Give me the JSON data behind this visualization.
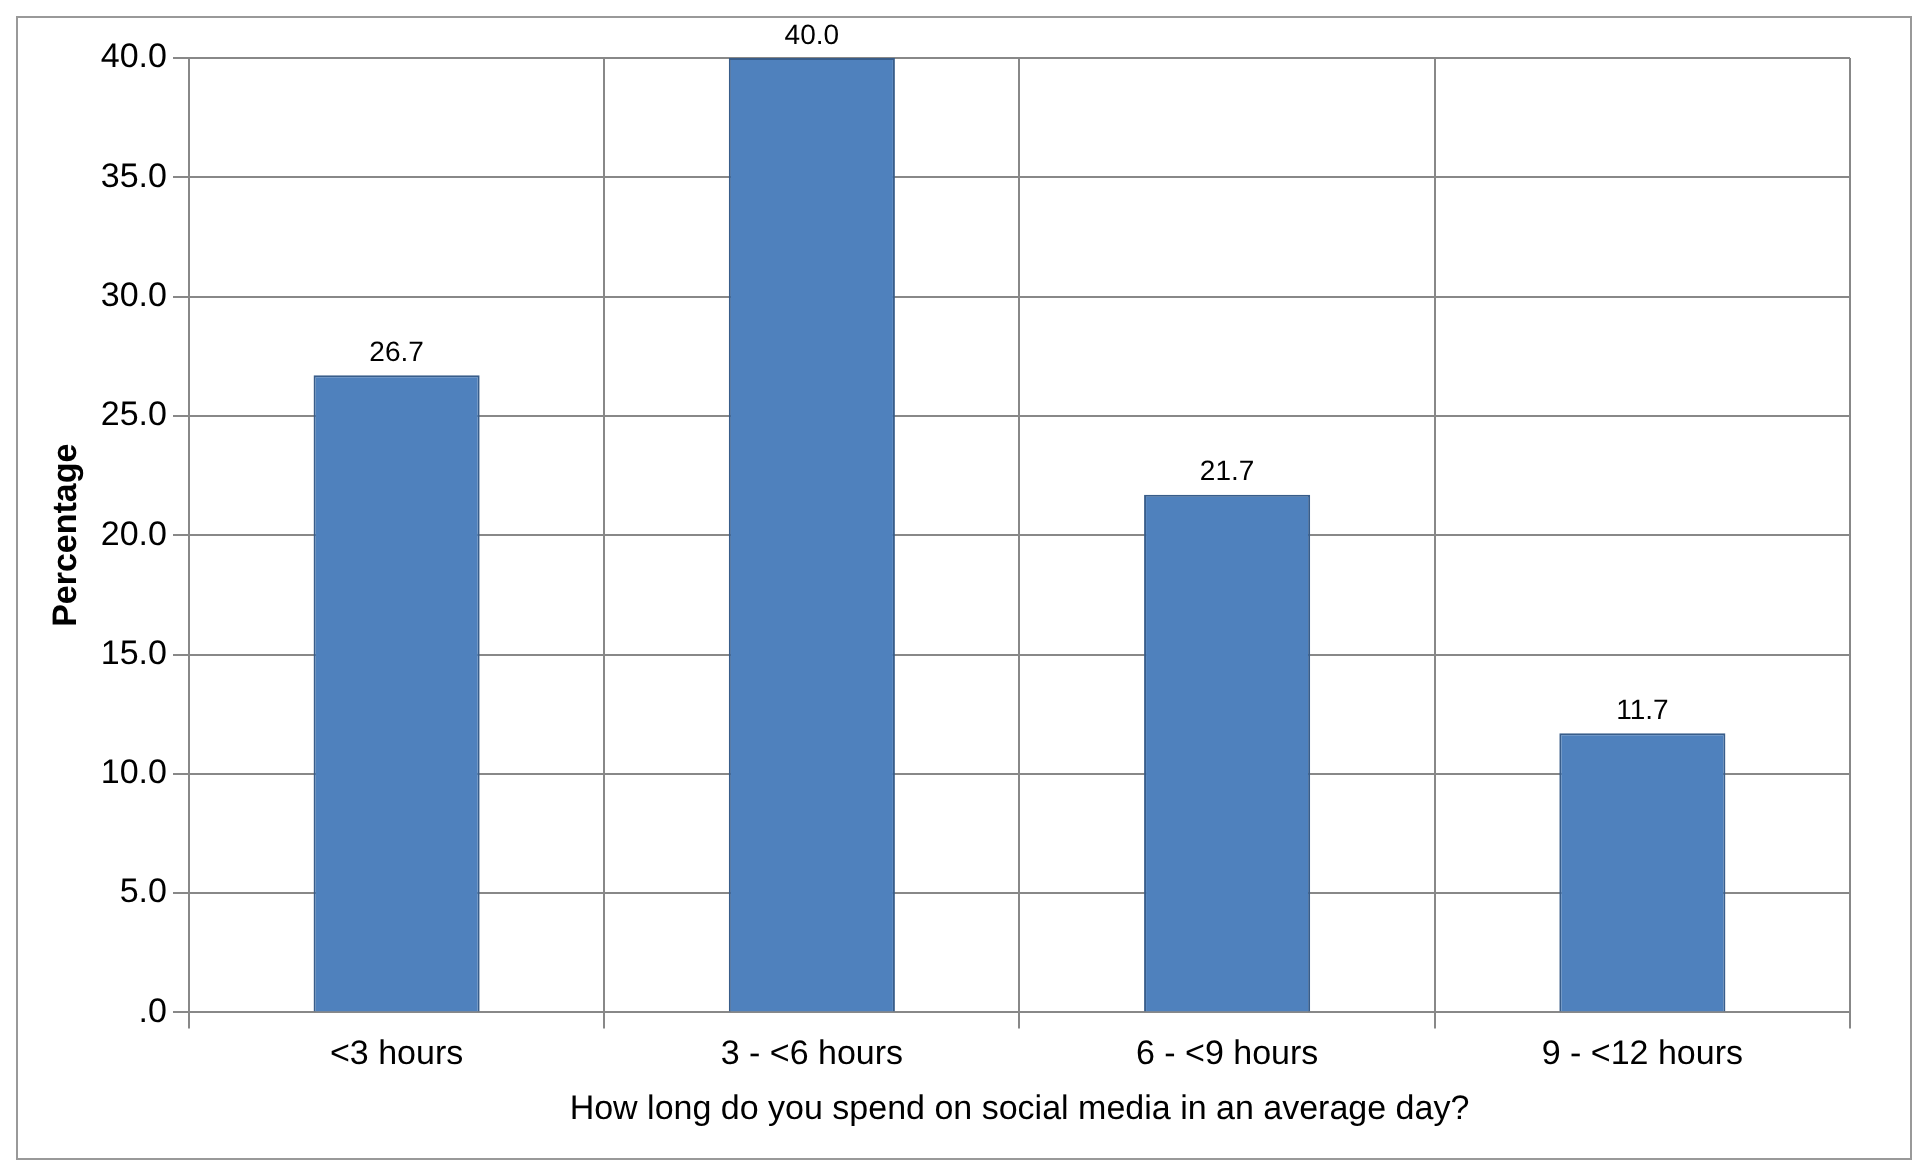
{
  "chart_data": {
    "type": "bar",
    "ylabel": "Percentage",
    "xlabel": "How long do you spend on social media in an average day?",
    "categories": [
      "<3 hours",
      "3 - <6 hours",
      "6 - <9 hours",
      "9 - <12 hours"
    ],
    "values": [
      26.7,
      40.0,
      21.7,
      11.7
    ],
    "value_labels": [
      "26.7",
      "40.0",
      "21.7",
      "11.7"
    ],
    "color": "#4f81bd",
    "ylim": [
      0,
      40
    ],
    "yticks": [
      {
        "value": 0,
        "label": ".0"
      },
      {
        "value": 5,
        "label": "5.0"
      },
      {
        "value": 10,
        "label": "10.0"
      },
      {
        "value": 15,
        "label": "15.0"
      },
      {
        "value": 20,
        "label": "20.0"
      },
      {
        "value": 25,
        "label": "25.0"
      },
      {
        "value": 30,
        "label": "30.0"
      },
      {
        "value": 35,
        "label": "35.0"
      },
      {
        "value": 40,
        "label": "40.0"
      }
    ],
    "grid": true,
    "legend": false
  }
}
